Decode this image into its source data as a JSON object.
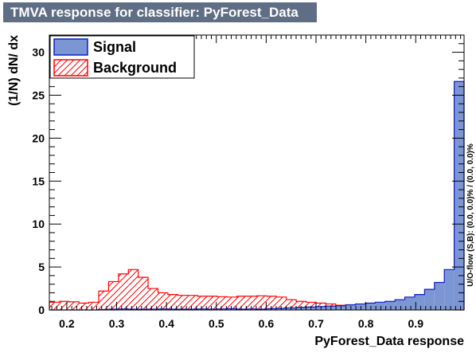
{
  "chart_data": {
    "type": "bar",
    "title": "TMVA response for classifier: PyForest_Data",
    "xlabel": "PyForest_Data response",
    "ylabel": "(1/N) dN/ dx",
    "side_note": "U/O-flow (S,B): (0.0, 0.0)% / (0.0, 0.0)%",
    "xlim": [
      0.165,
      0.997
    ],
    "ylim": [
      0,
      32
    ],
    "x_ticks": [
      "0.2",
      "0.3",
      "0.4",
      "0.5",
      "0.6",
      "0.7",
      "0.8",
      "0.9"
    ],
    "y_ticks": [
      "0",
      "5",
      "10",
      "15",
      "20",
      "25",
      "30"
    ],
    "bin_width": 0.0208,
    "legend": {
      "placement": "top-left"
    },
    "series": [
      {
        "name": "Signal",
        "style": "filled",
        "fill_color": "#7b96d2",
        "line_color": "#0d1cc8",
        "values": [
          0,
          0,
          0,
          0,
          0,
          0.05,
          0.1,
          0.12,
          0.1,
          0.08,
          0.1,
          0.12,
          0.1,
          0.1,
          0.1,
          0.12,
          0.1,
          0.12,
          0.15,
          0.1,
          0.12,
          0.1,
          0.15,
          0.2,
          0.25,
          0.3,
          0.35,
          0.4,
          0.45,
          0.5,
          0.6,
          0.7,
          0.8,
          0.9,
          1.0,
          1.2,
          1.5,
          1.8,
          2.4,
          3.2,
          4.7,
          26.6
        ]
      },
      {
        "name": "Background",
        "style": "hatched",
        "fill_color": "#ff0000",
        "line_color": "#ff0000",
        "values": [
          0.9,
          1.0,
          0.95,
          0.8,
          0.9,
          2.2,
          3.3,
          4.2,
          4.7,
          3.8,
          2.5,
          2.0,
          1.8,
          1.7,
          1.7,
          1.6,
          1.6,
          1.55,
          1.5,
          1.6,
          1.6,
          1.65,
          1.6,
          1.5,
          1.2,
          1.0,
          0.9,
          0.8,
          0.7,
          0.55,
          0.45,
          0.35,
          0.3,
          0.25,
          0.25,
          0.15,
          0.15,
          0.1,
          0.1,
          0.05,
          0.05,
          0.0
        ]
      }
    ]
  }
}
